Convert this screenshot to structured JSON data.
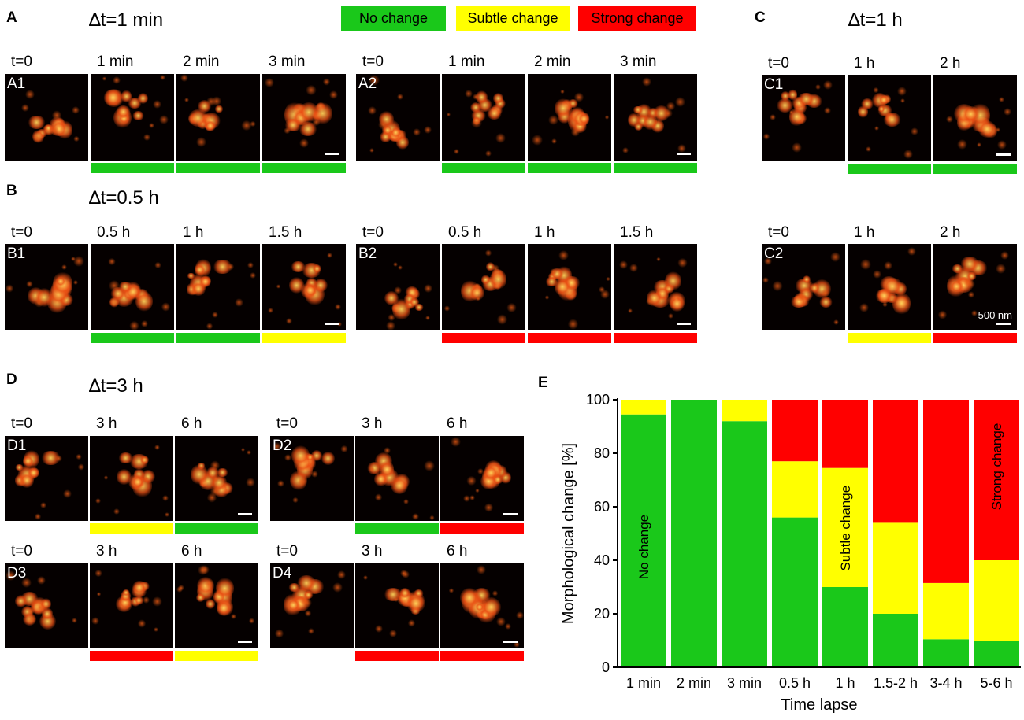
{
  "colors": {
    "no_change": "#1ac81a",
    "subtle_change": "#ffff00",
    "strong_change": "#ff0000"
  },
  "legend": [
    "No change",
    "Subtle change",
    "Strong change"
  ],
  "panels": {
    "A": {
      "label": "A",
      "dt": "∆t=1 min",
      "rows": [
        {
          "id": "A1",
          "times": [
            "t=0",
            "1 min",
            "2 min",
            "3 min"
          ],
          "changes": [
            "none",
            "none",
            "none"
          ]
        },
        {
          "id": "A2",
          "times": [
            "t=0",
            "1 min",
            "2 min",
            "3 min"
          ],
          "changes": [
            "none",
            "none",
            "none"
          ]
        }
      ]
    },
    "B": {
      "label": "B",
      "dt": "∆t=0.5 h",
      "rows": [
        {
          "id": "B1",
          "times": [
            "t=0",
            "0.5 h",
            "1 h",
            "1.5 h"
          ],
          "changes": [
            "none",
            "none",
            "subtle"
          ]
        },
        {
          "id": "B2",
          "times": [
            "t=0",
            "0.5 h",
            "1 h",
            "1.5 h"
          ],
          "changes": [
            "strong",
            "strong",
            "strong"
          ]
        }
      ]
    },
    "C": {
      "label": "C",
      "dt": "∆t=1 h",
      "scale_bar": "500 nm",
      "rows": [
        {
          "id": "C1",
          "times": [
            "t=0",
            "1 h",
            "2 h"
          ],
          "changes": [
            "none",
            "none"
          ]
        },
        {
          "id": "C2",
          "times": [
            "t=0",
            "1 h",
            "2 h"
          ],
          "changes": [
            "subtle",
            "strong"
          ]
        }
      ]
    },
    "D": {
      "label": "D",
      "dt": "∆t=3 h",
      "rows": [
        {
          "id": "D1",
          "times": [
            "t=0",
            "3 h",
            "6 h"
          ],
          "changes": [
            "subtle",
            "none"
          ]
        },
        {
          "id": "D2",
          "times": [
            "t=0",
            "3 h",
            "6 h"
          ],
          "changes": [
            "none",
            "strong"
          ]
        },
        {
          "id": "D3",
          "times": [
            "t=0",
            "3 h",
            "6 h"
          ],
          "changes": [
            "strong",
            "subtle"
          ]
        },
        {
          "id": "D4",
          "times": [
            "t=0",
            "3 h",
            "6 h"
          ],
          "changes": [
            "strong",
            "strong"
          ]
        }
      ]
    },
    "E": {
      "label": "E"
    }
  },
  "chart_data": {
    "type": "bar",
    "stacked": true,
    "categories": [
      "1 min",
      "2 min",
      "3 min",
      "0.5 h",
      "1 h",
      "1.5-2 h",
      "3-4 h",
      "5-6 h"
    ],
    "series": [
      {
        "name": "No change",
        "color": "#1ac81a",
        "values": [
          94.5,
          100,
          92,
          56,
          30,
          20,
          10.5,
          10
        ]
      },
      {
        "name": "Subtle change",
        "color": "#ffff00",
        "values": [
          5.5,
          0,
          8,
          21,
          44.5,
          34,
          21,
          30
        ]
      },
      {
        "name": "Strong change",
        "color": "#ff0000",
        "values": [
          0,
          0,
          0,
          23,
          25.5,
          46,
          68.5,
          60
        ]
      }
    ],
    "annotations": [
      "No change",
      "Subtle change",
      "Strong change"
    ],
    "xlabel": "Time lapse",
    "ylabel": "Morphological change [%]",
    "yticks": [
      0,
      20,
      40,
      60,
      80,
      100
    ],
    "ylim": [
      0,
      100
    ],
    "grid": false
  }
}
